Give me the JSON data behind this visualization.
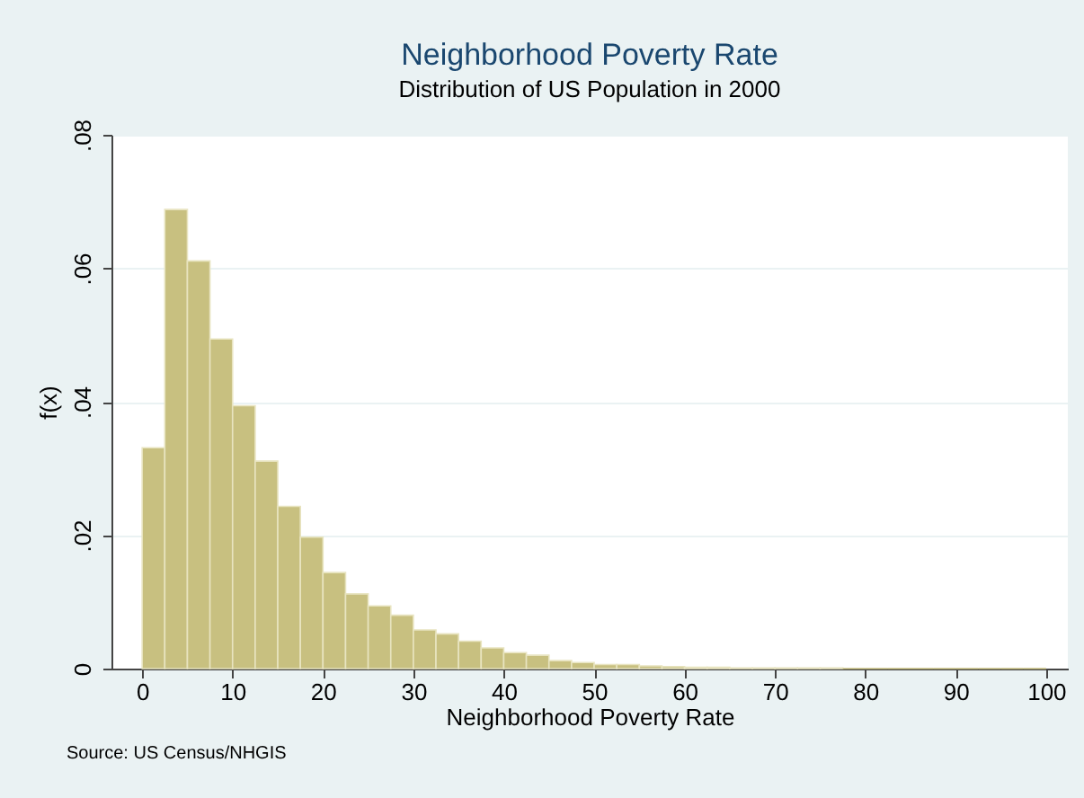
{
  "chart_data": {
    "type": "histogram",
    "title": "Neighborhood Poverty Rate",
    "subtitle": "Distribution of US Population in 2000",
    "xlabel": "Neighborhood Poverty Rate",
    "ylabel": "f(x)",
    "annotations": [
      "Source:  US Census/NHGIS"
    ],
    "bins": [
      0,
      2.5,
      5,
      7.5,
      10,
      12.5,
      15,
      17.5,
      20,
      22.5,
      25,
      27.5,
      30,
      32.5,
      35,
      37.5,
      40,
      42.5,
      45,
      47.5,
      50,
      52.5,
      55,
      57.5,
      60,
      62.5,
      65,
      67.5,
      70,
      72.5,
      75,
      77.5,
      80,
      82.5,
      85,
      87.5,
      90,
      92.5,
      95,
      97.5,
      100
    ],
    "values": [
      0.0331,
      0.0688,
      0.0611,
      0.0494,
      0.0394,
      0.0311,
      0.0243,
      0.0197,
      0.0144,
      0.0112,
      0.0094,
      0.008,
      0.0058,
      0.0052,
      0.0041,
      0.0031,
      0.0024,
      0.002,
      0.0012,
      0.0009,
      0.0006,
      0.0006,
      0.0004,
      0.0003,
      0.0002,
      0.0002,
      0.0001,
      0.0001,
      0.0001,
      0.0001,
      0.0001,
      0,
      0,
      0,
      0,
      0,
      0,
      0,
      0,
      0
    ],
    "color": "#c8c080",
    "xlim": [
      -3.4,
      102.4
    ],
    "xticks": [
      0,
      10,
      20,
      30,
      40,
      50,
      60,
      70,
      80,
      90,
      100
    ],
    "ylim": [
      0,
      0.08
    ],
    "yticks": [
      0,
      {
        "value": 0.02,
        "label": ".02"
      },
      {
        "value": 0.04,
        "label": ".04"
      },
      {
        "value": 0.06,
        "label": ".06"
      },
      {
        "value": 0.08,
        "label": ".08"
      }
    ],
    "grid": "y"
  }
}
